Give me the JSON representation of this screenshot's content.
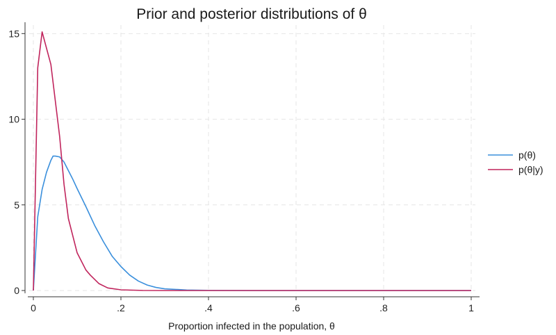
{
  "chart_data": {
    "type": "line",
    "title": "Prior and posterior distributions of θ",
    "xlabel": "Proportion infected in the population, θ",
    "ylabel": "",
    "xlim": [
      0,
      1
    ],
    "ylim": [
      0,
      15.5
    ],
    "xticks": [
      0,
      0.2,
      0.4,
      0.6,
      0.8,
      1
    ],
    "xtick_labels": [
      "0",
      ".2",
      ".4",
      ".6",
      ".8",
      "1"
    ],
    "yticks": [
      0,
      5,
      10,
      15
    ],
    "ytick_labels": [
      "0",
      "5",
      "10",
      "15"
    ],
    "grid": true,
    "legend_position": "right",
    "series": [
      {
        "name": "p(θ)",
        "color": "#3a8fdc",
        "x": [
          0,
          0.01,
          0.02,
          0.03,
          0.04,
          0.045,
          0.05,
          0.06,
          0.07,
          0.08,
          0.09,
          0.1,
          0.12,
          0.14,
          0.16,
          0.18,
          0.2,
          0.22,
          0.24,
          0.26,
          0.28,
          0.3,
          0.35,
          0.4,
          0.5,
          0.6,
          0.7,
          0.8,
          0.9,
          1
        ],
        "y": [
          0,
          4.3,
          5.9,
          6.9,
          7.6,
          7.85,
          7.85,
          7.8,
          7.5,
          7.0,
          6.5,
          5.95,
          4.9,
          3.8,
          2.85,
          2.0,
          1.4,
          0.9,
          0.55,
          0.32,
          0.18,
          0.1,
          0.03,
          0.01,
          0,
          0,
          0,
          0,
          0,
          1e-09
        ]
      },
      {
        "name": "p(θ|y)",
        "color": "#c0245c",
        "x": [
          0,
          0.01,
          0.02,
          0.04,
          0.06,
          0.07,
          0.08,
          0.1,
          0.12,
          0.13,
          0.15,
          0.17,
          0.2,
          0.25,
          0.3,
          0.4,
          0.5,
          0.6,
          0.7,
          0.8,
          0.9,
          1
        ],
        "y": [
          0,
          13.0,
          15.1,
          13.2,
          9.0,
          6.2,
          4.2,
          2.2,
          1.2,
          0.9,
          0.4,
          0.15,
          0.04,
          0.005,
          0,
          0,
          0,
          0,
          0,
          0,
          0,
          1e-09
        ]
      }
    ]
  }
}
